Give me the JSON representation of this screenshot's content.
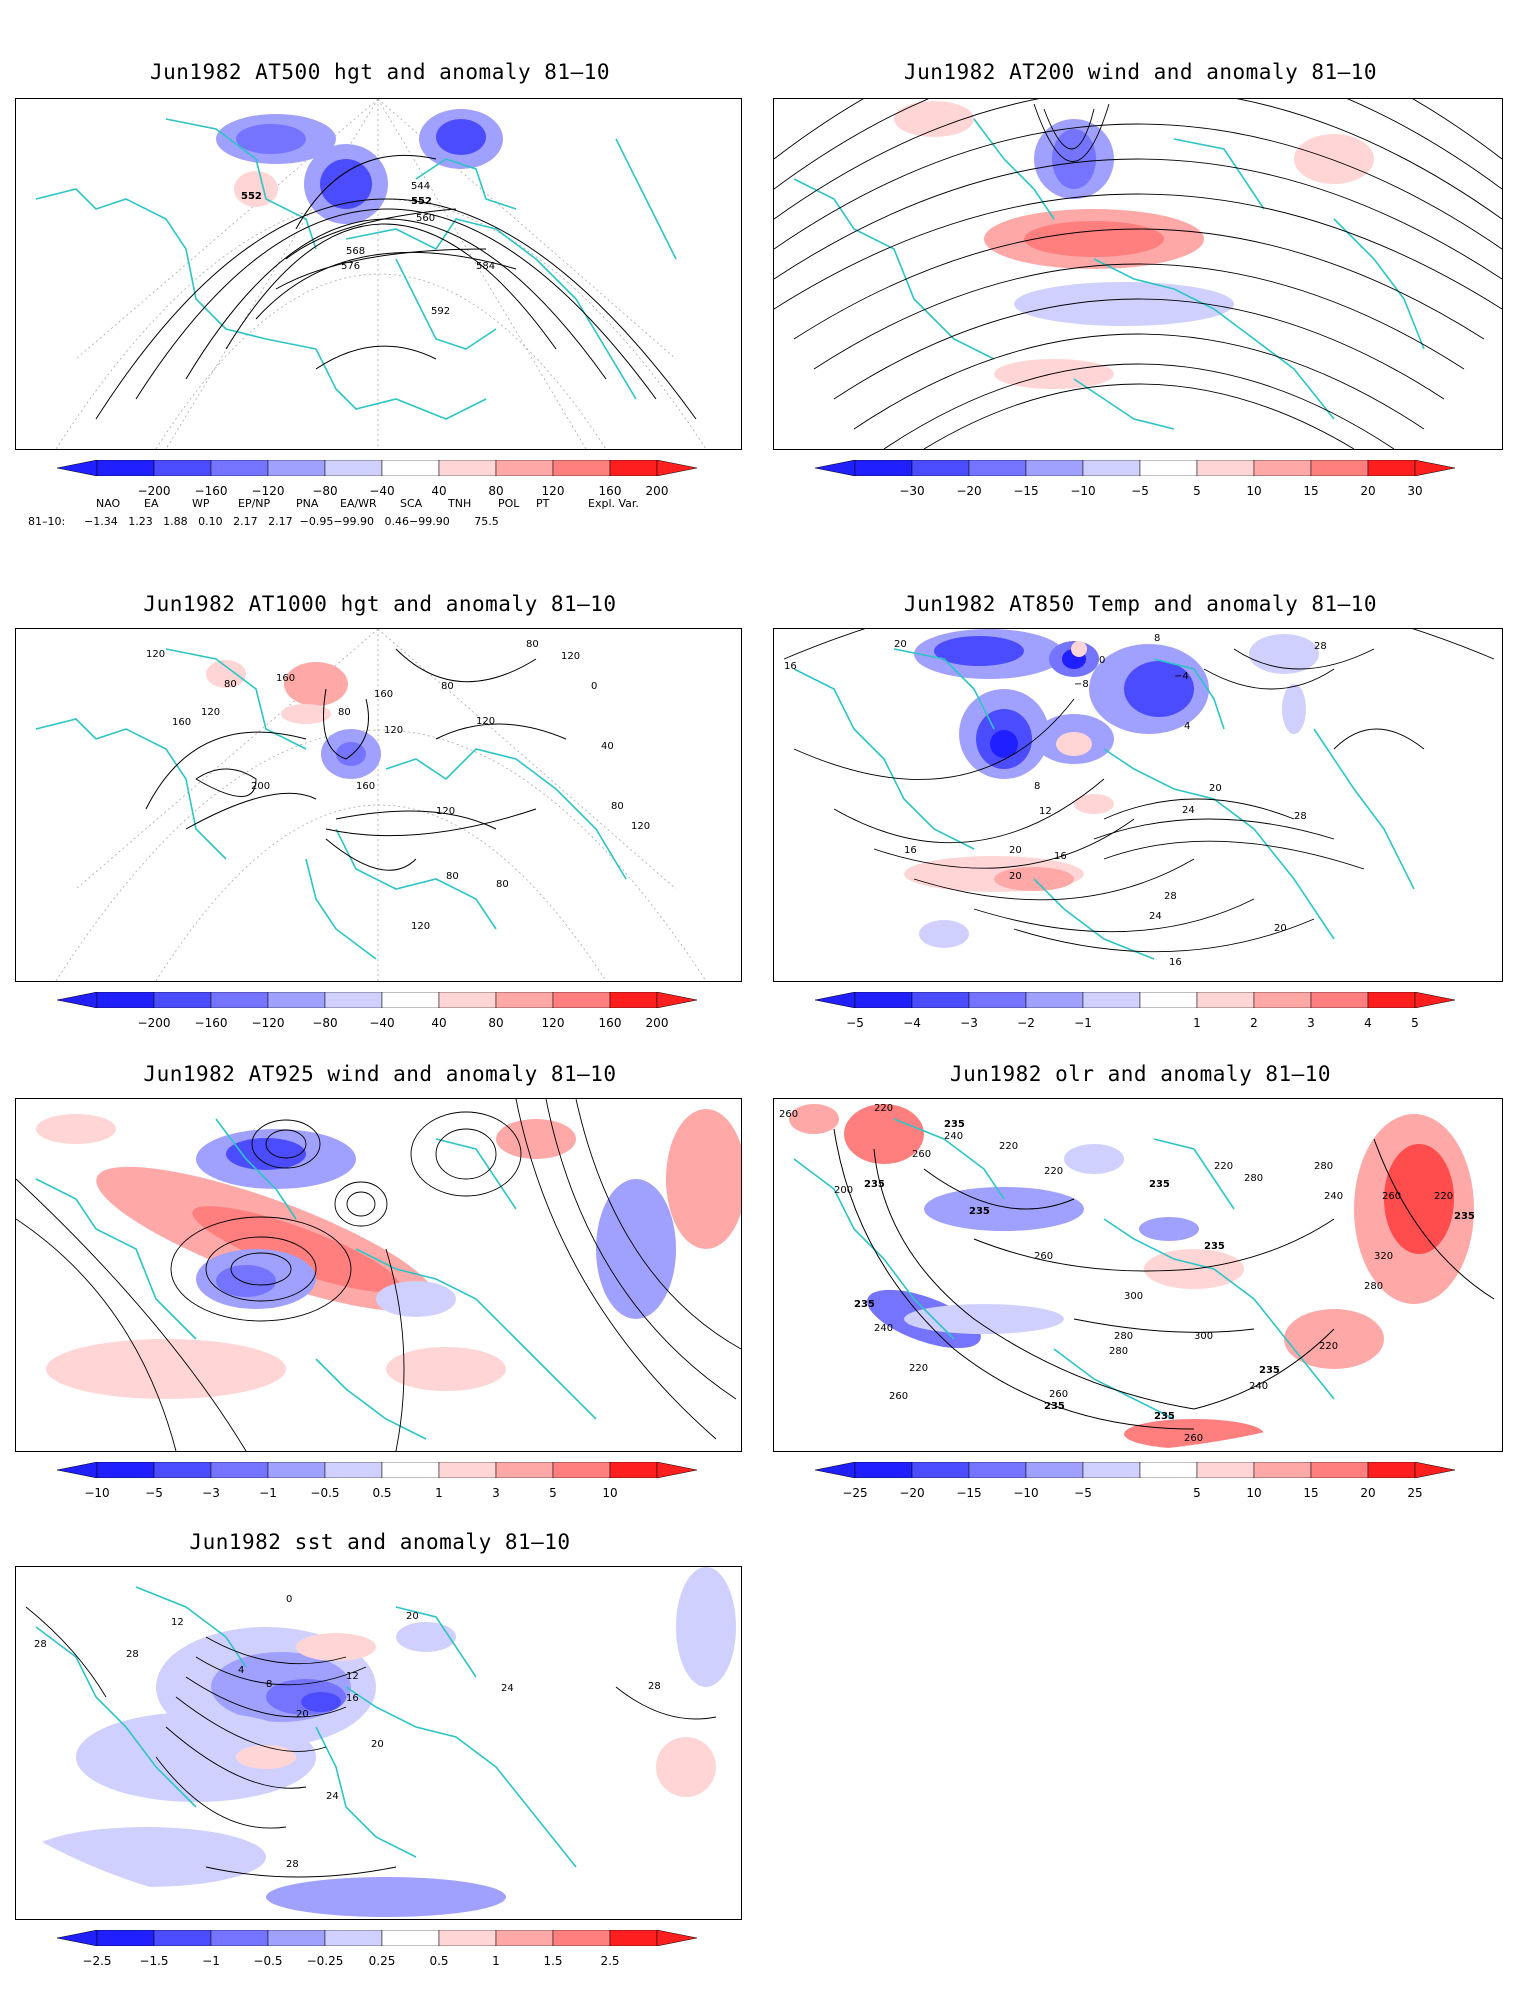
{
  "panels": [
    {
      "id": "p1",
      "title": "Jun1982 AT500 hgt and anomaly 81–10",
      "colorbar": [
        "−200",
        "−160",
        "−120",
        "−80",
        "−40",
        "40",
        "80",
        "120",
        "160",
        "200"
      ],
      "contour_labels": [
        "552",
        "544",
        "552",
        "560",
        "568",
        "576",
        "584",
        "592"
      ]
    },
    {
      "id": "p2",
      "title": "Jun1982 AT200 wind and anomaly 81–10",
      "colorbar": [
        "−30",
        "−20",
        "−15",
        "−10",
        "−5",
        "5",
        "10",
        "15",
        "20",
        "30"
      ],
      "contour_labels": []
    },
    {
      "id": "p3",
      "title": "Jun1982 AT1000 hgt and anomaly 81–10",
      "colorbar": [
        "−200",
        "−160",
        "−120",
        "−80",
        "−40",
        "40",
        "80",
        "120",
        "160",
        "200"
      ],
      "contour_labels": [
        "120",
        "80",
        "160",
        "160",
        "120",
        "80",
        "120",
        "80",
        "120",
        "160",
        "200",
        "160",
        "120",
        "80",
        "120",
        "40",
        "0",
        "80",
        "120",
        "80",
        "80",
        "120"
      ]
    },
    {
      "id": "p4",
      "title": "Jun1982 AT850 Temp and anomaly 81–10",
      "colorbar": [
        "−5",
        "−4",
        "−3",
        "−2",
        "−1",
        "1",
        "2",
        "3",
        "4",
        "5"
      ],
      "contour_labels": [
        "16",
        "20",
        "8",
        "0",
        "−4",
        "−8",
        "4",
        "8",
        "12",
        "16",
        "20",
        "24",
        "20",
        "28",
        "28",
        "24",
        "20",
        "16",
        "16",
        "20",
        "28"
      ]
    },
    {
      "id": "p5",
      "title": "Jun1982 AT925 wind and anomaly 81–10",
      "colorbar": [
        "−10",
        "−5",
        "−3",
        "−1",
        "−0.5",
        "0.5",
        "1",
        "3",
        "5",
        "10"
      ],
      "contour_labels": []
    },
    {
      "id": "p6",
      "title": "Jun1982 olr and anomaly 81–10",
      "colorbar": [
        "−25",
        "−20",
        "−15",
        "−10",
        "−5",
        "5",
        "10",
        "15",
        "20",
        "25"
      ],
      "contour_labels": [
        "260",
        "220",
        "235",
        "240",
        "220",
        "235",
        "220",
        "200",
        "235",
        "260",
        "280",
        "235",
        "220",
        "240",
        "235",
        "280",
        "320",
        "220",
        "260",
        "235",
        "280",
        "300",
        "260",
        "235",
        "220",
        "240",
        "260",
        "280",
        "300",
        "235",
        "280",
        "260",
        "235",
        "235",
        "260",
        "240",
        "220"
      ]
    },
    {
      "id": "p7",
      "title": "Jun1982 sst and anomaly 81–10",
      "colorbar": [
        "−2.5",
        "−1.5",
        "−1",
        "−0.5",
        "−0.25",
        "0.25",
        "0.5",
        "1",
        "1.5",
        "2.5"
      ],
      "contour_labels": [
        "28",
        "0",
        "12",
        "4",
        "8",
        "12",
        "16",
        "20",
        "20",
        "24",
        "24",
        "28",
        "28",
        "20",
        "28"
      ]
    }
  ],
  "teleconnections": {
    "headers": [
      "NAO",
      "EA",
      "WP",
      "EP/NP",
      "PNA",
      "EA/WR",
      "SCA",
      "TNH",
      "POL",
      "PT",
      "Expl. Var."
    ],
    "row_label": "81–10:",
    "values": "−1.34   1.23   1.88   0.10   2.17   2.17  −0.95−99.90   0.46−99.90       75.5"
  },
  "colors": {
    "blue_scale": [
      "#1f1fff",
      "#4c4cff",
      "#7474ff",
      "#a0a0ff",
      "#d0d0ff"
    ],
    "red_scale": [
      "#ffd5d5",
      "#ffa8a8",
      "#ff7f7f",
      "#ff4c4c",
      "#ff1f1f"
    ],
    "coastline": "#2ec4c4",
    "contour": "#000000",
    "grid": "#aaaaaa"
  }
}
